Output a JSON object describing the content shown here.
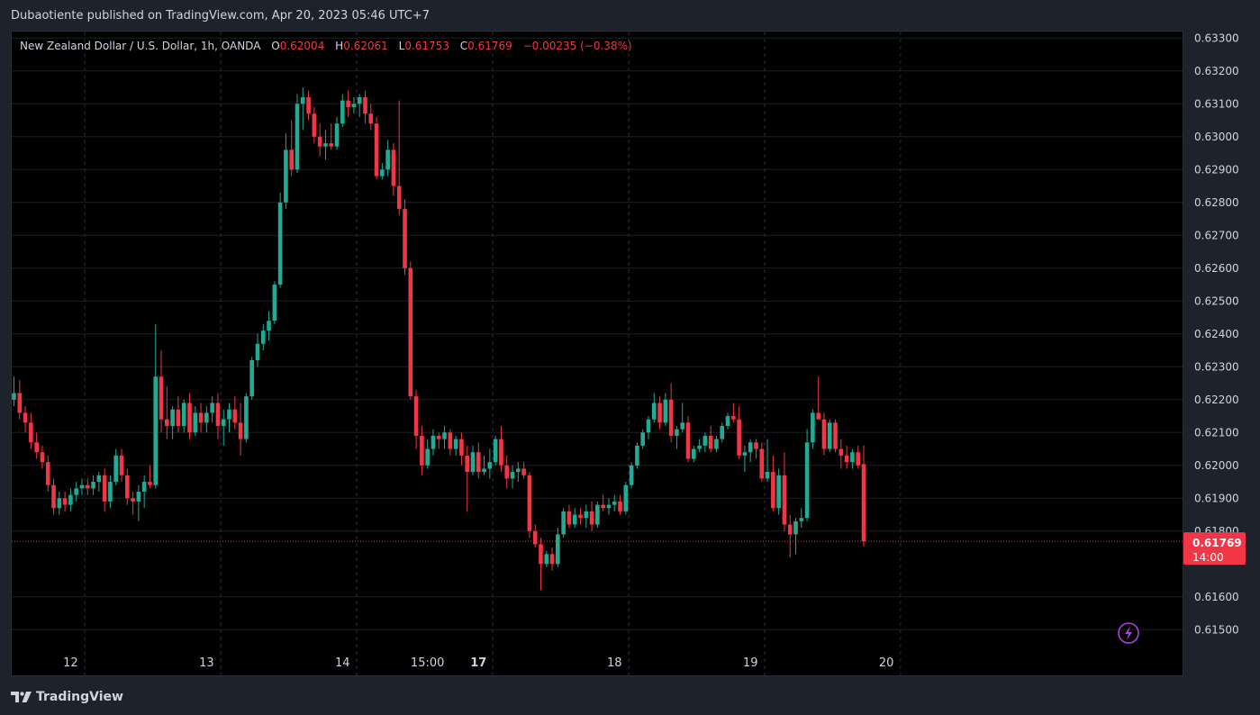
{
  "header": {
    "published": "Dubaotiente published on TradingView.com, Apr 20, 2023 05:46 UTC+7"
  },
  "legend": {
    "symbol": "New Zealand Dollar / U.S. Dollar, 1h, OANDA",
    "open_label": "O",
    "open": "0.62004",
    "high_label": "H",
    "high": "0.62061",
    "low_label": "L",
    "low": "0.61753",
    "close_label": "C",
    "close": "0.61769",
    "change": "−0.00235 (−0.38%)"
  },
  "price_tag": {
    "price": "0.61769",
    "countdown": "14:00"
  },
  "footer": {
    "brand": "TradingView"
  },
  "colors": {
    "up": "#22ab94",
    "down": "#f23645",
    "background": "#000000",
    "frame": "#1e222d",
    "grid": "#1c1f26",
    "accent_icon": "#b33fd6"
  },
  "icons": {
    "replay": "lightning-icon",
    "logo": "tradingview-logo-icon"
  },
  "chart_data": {
    "type": "candlestick",
    "title": "",
    "xlabel": "",
    "ylabel": "",
    "ylim": [
      0.6145,
      0.6331
    ],
    "y_ticks": [
      "0.63300",
      "0.63200",
      "0.63100",
      "0.63000",
      "0.62900",
      "0.62800",
      "0.62700",
      "0.62600",
      "0.62500",
      "0.62400",
      "0.62300",
      "0.62200",
      "0.62100",
      "0.62000",
      "0.61900",
      "0.61800",
      "0.61600",
      "0.61500"
    ],
    "x_ticks": [
      {
        "label": "12",
        "bar": 10
      },
      {
        "label": "13",
        "bar": 34
      },
      {
        "label": "14",
        "bar": 58
      },
      {
        "label": "15:00",
        "bar": 73
      },
      {
        "label": "17",
        "bar": 82
      },
      {
        "label": "18",
        "bar": 106
      },
      {
        "label": "19",
        "bar": 130
      },
      {
        "label": "20",
        "bar": 154
      }
    ],
    "vertical_grid_bars": [
      12.5,
      36.5,
      60.5,
      84.5,
      108.5,
      132.5,
      156.5
    ],
    "bold_tick": "17",
    "last_price": 0.61769,
    "candles": [
      [
        0.622,
        0.6227,
        0.6218,
        0.6222
      ],
      [
        0.6222,
        0.6226,
        0.6214,
        0.6216
      ],
      [
        0.6216,
        0.6218,
        0.621,
        0.6213
      ],
      [
        0.6213,
        0.6216,
        0.6205,
        0.6207
      ],
      [
        0.6207,
        0.621,
        0.6202,
        0.6204
      ],
      [
        0.6204,
        0.6206,
        0.6199,
        0.6201
      ],
      [
        0.6201,
        0.6203,
        0.6192,
        0.6194
      ],
      [
        0.6194,
        0.6196,
        0.6185,
        0.6187
      ],
      [
        0.6187,
        0.6192,
        0.6185,
        0.619
      ],
      [
        0.619,
        0.6192,
        0.6186,
        0.6188
      ],
      [
        0.6188,
        0.6193,
        0.6186,
        0.6191
      ],
      [
        0.6191,
        0.6195,
        0.6189,
        0.6193
      ],
      [
        0.6193,
        0.6196,
        0.6191,
        0.6194
      ],
      [
        0.6194,
        0.6196,
        0.6191,
        0.6193
      ],
      [
        0.6193,
        0.6197,
        0.6191,
        0.6195
      ],
      [
        0.6195,
        0.6198,
        0.6192,
        0.6197
      ],
      [
        0.6197,
        0.6199,
        0.6186,
        0.6189
      ],
      [
        0.6189,
        0.6197,
        0.6187,
        0.6195
      ],
      [
        0.6195,
        0.6205,
        0.6194,
        0.6203
      ],
      [
        0.6203,
        0.6205,
        0.6195,
        0.6197
      ],
      [
        0.6197,
        0.6199,
        0.6188,
        0.619
      ],
      [
        0.619,
        0.6192,
        0.6185,
        0.6189
      ],
      [
        0.6189,
        0.6194,
        0.6183,
        0.6192
      ],
      [
        0.6192,
        0.6197,
        0.6187,
        0.6195
      ],
      [
        0.6195,
        0.62,
        0.6193,
        0.6194
      ],
      [
        0.6194,
        0.6243,
        0.6193,
        0.6227
      ],
      [
        0.6227,
        0.6235,
        0.621,
        0.6214
      ],
      [
        0.6214,
        0.6224,
        0.6208,
        0.6212
      ],
      [
        0.6212,
        0.6218,
        0.6208,
        0.6217
      ],
      [
        0.6217,
        0.6221,
        0.621,
        0.6212
      ],
      [
        0.6212,
        0.622,
        0.621,
        0.6219
      ],
      [
        0.6219,
        0.6222,
        0.6208,
        0.621
      ],
      [
        0.621,
        0.6218,
        0.6209,
        0.6216
      ],
      [
        0.6216,
        0.6219,
        0.621,
        0.6213
      ],
      [
        0.6213,
        0.6218,
        0.621,
        0.6216
      ],
      [
        0.6216,
        0.6221,
        0.6213,
        0.6219
      ],
      [
        0.6219,
        0.6222,
        0.6208,
        0.6212
      ],
      [
        0.6212,
        0.6217,
        0.6206,
        0.6214
      ],
      [
        0.6214,
        0.6219,
        0.621,
        0.6217
      ],
      [
        0.6217,
        0.6221,
        0.6211,
        0.6213
      ],
      [
        0.6213,
        0.6219,
        0.6203,
        0.6208
      ],
      [
        0.6208,
        0.6222,
        0.6207,
        0.6221
      ],
      [
        0.6221,
        0.6233,
        0.622,
        0.6232
      ],
      [
        0.6232,
        0.624,
        0.623,
        0.6237
      ],
      [
        0.6237,
        0.6243,
        0.6235,
        0.6241
      ],
      [
        0.6241,
        0.6247,
        0.6238,
        0.6244
      ],
      [
        0.6244,
        0.6256,
        0.6243,
        0.6255
      ],
      [
        0.6255,
        0.6283,
        0.6254,
        0.628
      ],
      [
        0.628,
        0.6301,
        0.6278,
        0.6296
      ],
      [
        0.6296,
        0.6305,
        0.6288,
        0.629
      ],
      [
        0.629,
        0.6313,
        0.6289,
        0.631
      ],
      [
        0.631,
        0.6315,
        0.6302,
        0.6312
      ],
      [
        0.6312,
        0.6314,
        0.6305,
        0.6307
      ],
      [
        0.6307,
        0.6309,
        0.6298,
        0.63
      ],
      [
        0.63,
        0.6304,
        0.6294,
        0.6297
      ],
      [
        0.6297,
        0.6302,
        0.6293,
        0.6298
      ],
      [
        0.6298,
        0.6304,
        0.6296,
        0.6297
      ],
      [
        0.6297,
        0.6306,
        0.6296,
        0.6304
      ],
      [
        0.6304,
        0.6313,
        0.6303,
        0.6311
      ],
      [
        0.6311,
        0.6314,
        0.6306,
        0.6309
      ],
      [
        0.6309,
        0.6312,
        0.6307,
        0.631
      ],
      [
        0.631,
        0.6313,
        0.6306,
        0.6312
      ],
      [
        0.6312,
        0.6314,
        0.6304,
        0.6307
      ],
      [
        0.6307,
        0.631,
        0.6302,
        0.6304
      ],
      [
        0.6304,
        0.6306,
        0.6287,
        0.6288
      ],
      [
        0.6288,
        0.6292,
        0.6287,
        0.629
      ],
      [
        0.629,
        0.6299,
        0.6288,
        0.6296
      ],
      [
        0.6296,
        0.6298,
        0.6282,
        0.6285
      ],
      [
        0.6285,
        0.6311,
        0.6276,
        0.6278
      ],
      [
        0.6278,
        0.6281,
        0.6258,
        0.626
      ],
      [
        0.626,
        0.6262,
        0.622,
        0.6221
      ],
      [
        0.6221,
        0.6223,
        0.6205,
        0.6209
      ],
      [
        0.6209,
        0.6212,
        0.6197,
        0.62
      ],
      [
        0.62,
        0.6208,
        0.6199,
        0.6205
      ],
      [
        0.6205,
        0.6211,
        0.6203,
        0.6209
      ],
      [
        0.6209,
        0.621,
        0.6205,
        0.6208
      ],
      [
        0.6208,
        0.6212,
        0.6205,
        0.621
      ],
      [
        0.621,
        0.6211,
        0.6203,
        0.6205
      ],
      [
        0.6205,
        0.6209,
        0.6203,
        0.6208
      ],
      [
        0.6208,
        0.621,
        0.62,
        0.6203
      ],
      [
        0.6203,
        0.6206,
        0.6186,
        0.6198
      ],
      [
        0.6198,
        0.6206,
        0.6197,
        0.6204
      ],
      [
        0.6204,
        0.6207,
        0.6196,
        0.6198
      ],
      [
        0.6198,
        0.6203,
        0.6197,
        0.6199
      ],
      [
        0.6199,
        0.6205,
        0.6196,
        0.6201
      ],
      [
        0.6201,
        0.6209,
        0.62,
        0.6208
      ],
      [
        0.6208,
        0.6212,
        0.6198,
        0.62
      ],
      [
        0.62,
        0.6203,
        0.6193,
        0.6196
      ],
      [
        0.6196,
        0.62,
        0.6193,
        0.6198
      ],
      [
        0.6198,
        0.6201,
        0.6195,
        0.6199
      ],
      [
        0.6199,
        0.6201,
        0.6196,
        0.6197
      ],
      [
        0.6197,
        0.6198,
        0.6178,
        0.618
      ],
      [
        0.618,
        0.6182,
        0.6175,
        0.6176
      ],
      [
        0.6176,
        0.6178,
        0.6162,
        0.617
      ],
      [
        0.617,
        0.6174,
        0.6169,
        0.6173
      ],
      [
        0.6173,
        0.6175,
        0.6168,
        0.617
      ],
      [
        0.617,
        0.6181,
        0.6169,
        0.6179
      ],
      [
        0.6179,
        0.6187,
        0.6178,
        0.6186
      ],
      [
        0.6186,
        0.6188,
        0.6181,
        0.6182
      ],
      [
        0.6182,
        0.6187,
        0.6181,
        0.6185
      ],
      [
        0.6185,
        0.6187,
        0.6182,
        0.6184
      ],
      [
        0.6184,
        0.6188,
        0.6181,
        0.6186
      ],
      [
        0.6186,
        0.6189,
        0.618,
        0.6182
      ],
      [
        0.6182,
        0.6189,
        0.6181,
        0.6188
      ],
      [
        0.6188,
        0.6191,
        0.6186,
        0.6187
      ],
      [
        0.6187,
        0.619,
        0.6185,
        0.6188
      ],
      [
        0.6188,
        0.6191,
        0.6186,
        0.6189
      ],
      [
        0.6189,
        0.6191,
        0.6185,
        0.6186
      ],
      [
        0.6186,
        0.6195,
        0.6185,
        0.6194
      ],
      [
        0.6194,
        0.6201,
        0.6193,
        0.62
      ],
      [
        0.62,
        0.6207,
        0.6199,
        0.6206
      ],
      [
        0.6206,
        0.6211,
        0.6205,
        0.621
      ],
      [
        0.621,
        0.6215,
        0.6208,
        0.6214
      ],
      [
        0.6214,
        0.6222,
        0.6213,
        0.6219
      ],
      [
        0.6219,
        0.6221,
        0.6211,
        0.6213
      ],
      [
        0.6213,
        0.6222,
        0.6212,
        0.622
      ],
      [
        0.622,
        0.6225,
        0.6207,
        0.6209
      ],
      [
        0.6209,
        0.6212,
        0.6205,
        0.6211
      ],
      [
        0.6211,
        0.6219,
        0.621,
        0.6213
      ],
      [
        0.6213,
        0.6215,
        0.6201,
        0.6202
      ],
      [
        0.6202,
        0.6206,
        0.6201,
        0.6205
      ],
      [
        0.6205,
        0.6208,
        0.6204,
        0.6206
      ],
      [
        0.6206,
        0.621,
        0.6204,
        0.6209
      ],
      [
        0.6209,
        0.6212,
        0.6204,
        0.6205
      ],
      [
        0.6205,
        0.6209,
        0.6204,
        0.6208
      ],
      [
        0.6208,
        0.6213,
        0.6207,
        0.6212
      ],
      [
        0.6212,
        0.6216,
        0.6211,
        0.6215
      ],
      [
        0.6215,
        0.6219,
        0.6213,
        0.6214
      ],
      [
        0.6214,
        0.6218,
        0.6202,
        0.6203
      ],
      [
        0.6203,
        0.6206,
        0.6198,
        0.6204
      ],
      [
        0.6204,
        0.6208,
        0.6201,
        0.6207
      ],
      [
        0.6207,
        0.6208,
        0.6202,
        0.6205
      ],
      [
        0.6205,
        0.6207,
        0.6195,
        0.6196
      ],
      [
        0.6196,
        0.6208,
        0.6195,
        0.6198
      ],
      [
        0.6198,
        0.6203,
        0.6186,
        0.6187
      ],
      [
        0.6187,
        0.6199,
        0.6185,
        0.6197
      ],
      [
        0.6197,
        0.6204,
        0.618,
        0.6182
      ],
      [
        0.6182,
        0.6185,
        0.6172,
        0.6179
      ],
      [
        0.6179,
        0.6184,
        0.6173,
        0.6183
      ],
      [
        0.6183,
        0.6187,
        0.6181,
        0.6184
      ],
      [
        0.6184,
        0.6211,
        0.6183,
        0.6207
      ],
      [
        0.6207,
        0.6217,
        0.6205,
        0.6216
      ],
      [
        0.6216,
        0.6227,
        0.6214,
        0.6214
      ],
      [
        0.6214,
        0.6216,
        0.6203,
        0.6205
      ],
      [
        0.6205,
        0.6214,
        0.6204,
        0.6213
      ],
      [
        0.6213,
        0.6214,
        0.6204,
        0.6205
      ],
      [
        0.6205,
        0.6208,
        0.6199,
        0.6203
      ],
      [
        0.6203,
        0.6206,
        0.6199,
        0.6201
      ],
      [
        0.6201,
        0.6205,
        0.6199,
        0.6204
      ],
      [
        0.6204,
        0.6206,
        0.6199,
        0.62
      ],
      [
        0.62004,
        0.62061,
        0.61753,
        0.61769
      ]
    ]
  }
}
